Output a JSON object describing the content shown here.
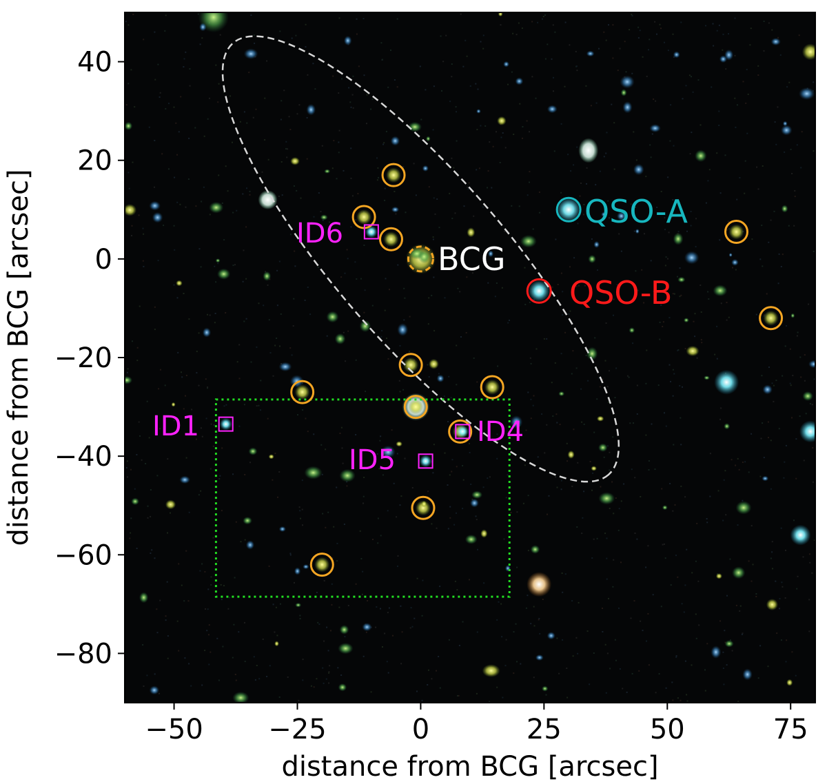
{
  "figure": {
    "xlabel": "distance from BCG [arcsec]",
    "ylabel": "distance from BCG [arcsec]",
    "xlim": [
      -60,
      80
    ],
    "ylim": [
      -90,
      50
    ],
    "xticks": [
      -50,
      -25,
      0,
      25,
      50,
      75
    ],
    "yticks": [
      40,
      20,
      0,
      -20,
      -40,
      -60,
      -80
    ],
    "xtick_labels": [
      "−50",
      "−25",
      "0",
      "25",
      "50",
      "75"
    ],
    "ytick_labels": [
      "40",
      "20",
      "0",
      "−20",
      "−40",
      "−60",
      "−80"
    ]
  },
  "colors": {
    "member_circle": "#f5a623",
    "bcg_circle": "#f5a623",
    "qso_a": "#17b7bf",
    "qso_b": "#ff1a1a",
    "id_label": "#ff22ff",
    "bcg_label": "#ffffff",
    "ellipse": "#d8d8d8",
    "box": "#22dd22",
    "sky": "#050607"
  },
  "labels": {
    "bcg": "BCG",
    "qso_a": "QSO-A",
    "qso_b": "QSO-B",
    "id1": "ID1",
    "id4": "ID4",
    "id5": "ID5",
    "id6": "ID6"
  },
  "markers": {
    "bcg": {
      "x": 0,
      "y": 0
    },
    "qso_a": {
      "x": 30,
      "y": 10
    },
    "qso_b": {
      "x": 24,
      "y": -6.5
    },
    "members": [
      {
        "x": -5.5,
        "y": 17
      },
      {
        "x": -11.5,
        "y": 8.5
      },
      {
        "x": -6,
        "y": 4
      },
      {
        "x": 64,
        "y": 5.5
      },
      {
        "x": 71,
        "y": -12
      },
      {
        "x": -2,
        "y": -21.5
      },
      {
        "x": -24,
        "y": -27
      },
      {
        "x": 14.5,
        "y": -26
      },
      {
        "x": -1,
        "y": -30
      },
      {
        "x": 8,
        "y": -35
      },
      {
        "x": 0.5,
        "y": -50.5
      },
      {
        "x": -20,
        "y": -62
      }
    ],
    "ids": [
      {
        "key": "id1",
        "x": -39.5,
        "y": -33.5
      },
      {
        "key": "id4",
        "x": 8.5,
        "y": -35
      },
      {
        "key": "id5",
        "x": 1,
        "y": -41
      },
      {
        "key": "id6",
        "x": -10,
        "y": 5.5
      }
    ],
    "ellipse": {
      "cx": 0,
      "cy": 0,
      "rx": 58,
      "ry": 17,
      "angle_deg": -49
    },
    "box": {
      "x0": -41.5,
      "x1": 18,
      "y0": -68.5,
      "y1": -28.5
    }
  }
}
